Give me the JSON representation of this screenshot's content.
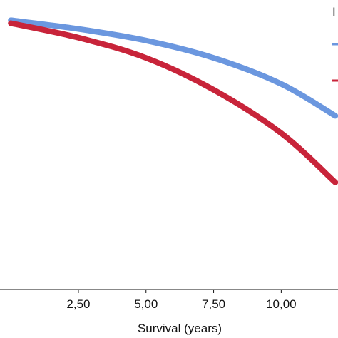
{
  "chart_data": {
    "type": "line",
    "xlabel": "Survival (years)",
    "ylabel": "",
    "x_ticks": [
      "2,50",
      "5,00",
      "7,50",
      "10,00"
    ],
    "x_tick_values": [
      2.5,
      5.0,
      7.5,
      10.0
    ],
    "legend_partial_text": "I",
    "legend_placement": "top-right",
    "grid": false,
    "series": [
      {
        "color": "#6b97df",
        "x": [
          0.0,
          2.5,
          5.0,
          7.5,
          10.0,
          12.0
        ],
        "y": [
          0.93,
          0.9,
          0.86,
          0.8,
          0.71,
          0.6
        ]
      },
      {
        "color": "#c8243a",
        "x": [
          0.0,
          2.5,
          5.0,
          7.5,
          10.0,
          12.0
        ],
        "y": [
          0.92,
          0.87,
          0.8,
          0.69,
          0.54,
          0.37
        ]
      }
    ],
    "xlim": [
      -0.4,
      12.1
    ],
    "ylim": [
      0.0,
      1.0
    ]
  }
}
